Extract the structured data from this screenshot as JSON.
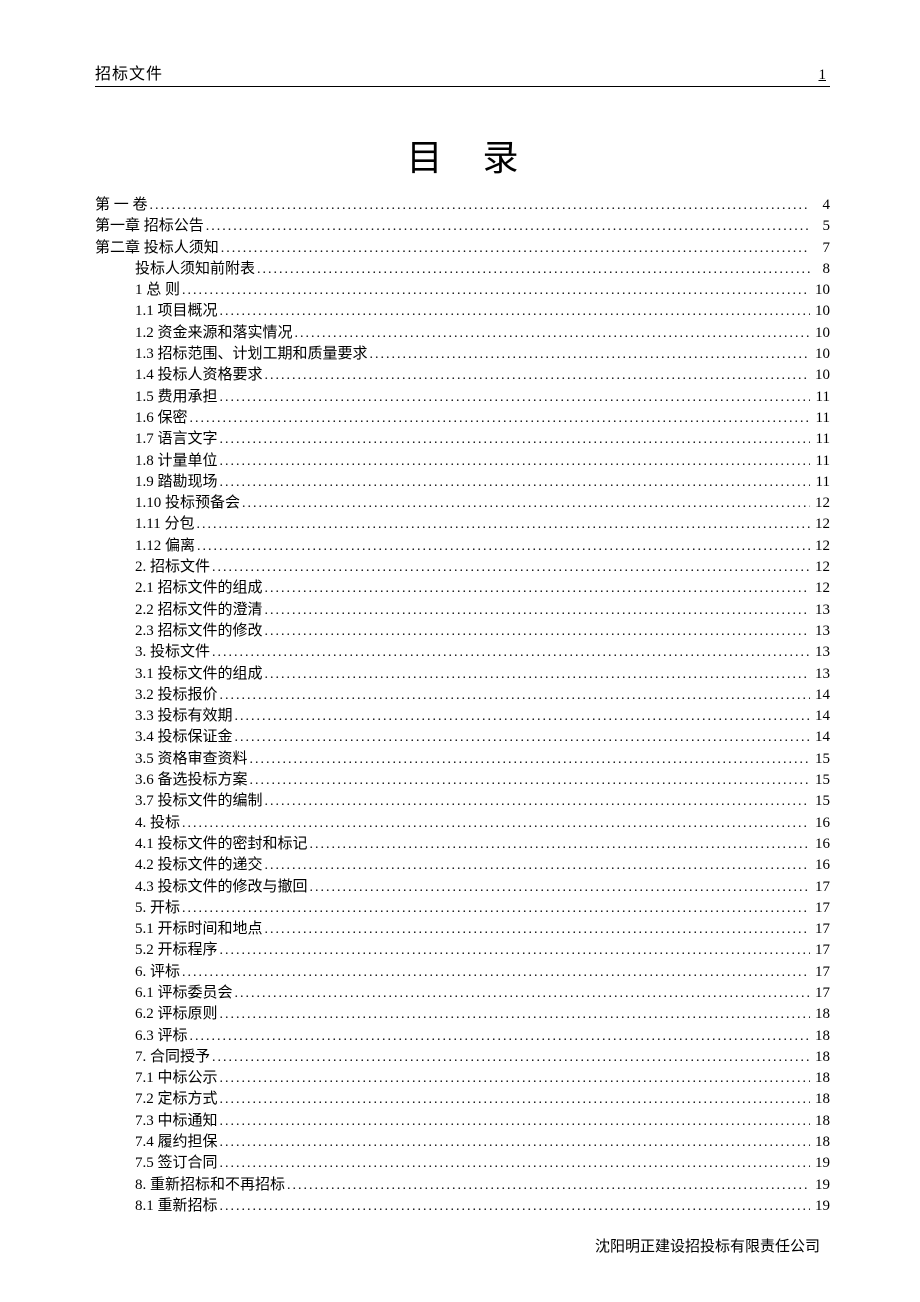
{
  "header": {
    "left": "招标文件",
    "page_number": "1"
  },
  "title": "目录",
  "toc": [
    {
      "label": "第 一 卷",
      "page": "4",
      "indent": 0
    },
    {
      "label": "第一章 招标公告",
      "page": "5",
      "indent": 0
    },
    {
      "label": "第二章 投标人须知",
      "page": "7",
      "indent": 0
    },
    {
      "label": "投标人须知前附表",
      "page": "8",
      "indent": 1
    },
    {
      "label": "1  总   则",
      "page": "10",
      "indent": 1
    },
    {
      "label": "1.1 项目概况 ",
      "page": "10",
      "indent": 1
    },
    {
      "label": "1.2 资金来源和落实情况",
      "page": "10",
      "indent": 1
    },
    {
      "label": "1.3 招标范围、计划工期和质量要求",
      "page": "10",
      "indent": 1
    },
    {
      "label": "1.4 投标人资格要求",
      "page": "10",
      "indent": 1
    },
    {
      "label": "1.5 费用承担",
      "page": "11",
      "indent": 1
    },
    {
      "label": "1.6 保密",
      "page": "11",
      "indent": 1
    },
    {
      "label": "1.7 语言文字",
      "page": "11",
      "indent": 1
    },
    {
      "label": "1.8 计量单位",
      "page": "11",
      "indent": 1
    },
    {
      "label": "1.9 踏勘现场",
      "page": "11",
      "indent": 1
    },
    {
      "label": "1.10 投标预备会",
      "page": "12",
      "indent": 1
    },
    {
      "label": "1.11 分包",
      "page": "12",
      "indent": 1
    },
    {
      "label": "1.12 偏离",
      "page": "12",
      "indent": 1
    },
    {
      "label": "2. 招标文件",
      "page": "12",
      "indent": 1
    },
    {
      "label": "2.1 招标文件的组成",
      "page": "12",
      "indent": 1
    },
    {
      "label": "2.2 招标文件的澄清",
      "page": "13",
      "indent": 1
    },
    {
      "label": "2.3 招标文件的修改",
      "page": "13",
      "indent": 1
    },
    {
      "label": "3. 投标文件",
      "page": "13",
      "indent": 1
    },
    {
      "label": "3.1 投标文件的组成",
      "page": "13",
      "indent": 1
    },
    {
      "label": "3.2 投标报价",
      "page": "14",
      "indent": 1
    },
    {
      "label": "3.3 投标有效期",
      "page": "14",
      "indent": 1
    },
    {
      "label": "3.4 投标保证金",
      "page": "14",
      "indent": 1
    },
    {
      "label": "3.5 资格审查资料",
      "page": "15",
      "indent": 1
    },
    {
      "label": "3.6 备选投标方案",
      "page": "15",
      "indent": 1
    },
    {
      "label": "3.7 投标文件的编制",
      "page": "15",
      "indent": 1
    },
    {
      "label": "4. 投标",
      "page": "16",
      "indent": 1
    },
    {
      "label": "4.1 投标文件的密封和标记",
      "page": "16",
      "indent": 1
    },
    {
      "label": "4.2 投标文件的递交",
      "page": "16",
      "indent": 1
    },
    {
      "label": "4.3 投标文件的修改与撤回",
      "page": "17",
      "indent": 1
    },
    {
      "label": "5. 开标",
      "page": "17",
      "indent": 1
    },
    {
      "label": "5.1 开标时间和地点",
      "page": "17",
      "indent": 1
    },
    {
      "label": "5.2 开标程序",
      "page": "17",
      "indent": 1
    },
    {
      "label": "6. 评标",
      "page": "17",
      "indent": 1
    },
    {
      "label": "6.1 评标委员会",
      "page": "17",
      "indent": 1
    },
    {
      "label": "6.2 评标原则",
      "page": "18",
      "indent": 1
    },
    {
      "label": "6.3 评标",
      "page": "18",
      "indent": 1
    },
    {
      "label": "7. 合同授予",
      "page": "18",
      "indent": 1
    },
    {
      "label": "7.1 中标公示",
      "page": "18",
      "indent": 1
    },
    {
      "label": "7.2 定标方式",
      "page": "18",
      "indent": 1
    },
    {
      "label": "7.3 中标通知 ",
      "page": "18",
      "indent": 1
    },
    {
      "label": "7.4 履约担保 ",
      "page": "18",
      "indent": 1
    },
    {
      "label": "7.5 签订合同",
      "page": "19",
      "indent": 1
    },
    {
      "label": "8. 重新招标和不再招标",
      "page": "19",
      "indent": 1
    },
    {
      "label": "8.1 重新招标",
      "page": "19",
      "indent": 1
    }
  ],
  "footer": "沈阳明正建设招投标有限责任公司"
}
